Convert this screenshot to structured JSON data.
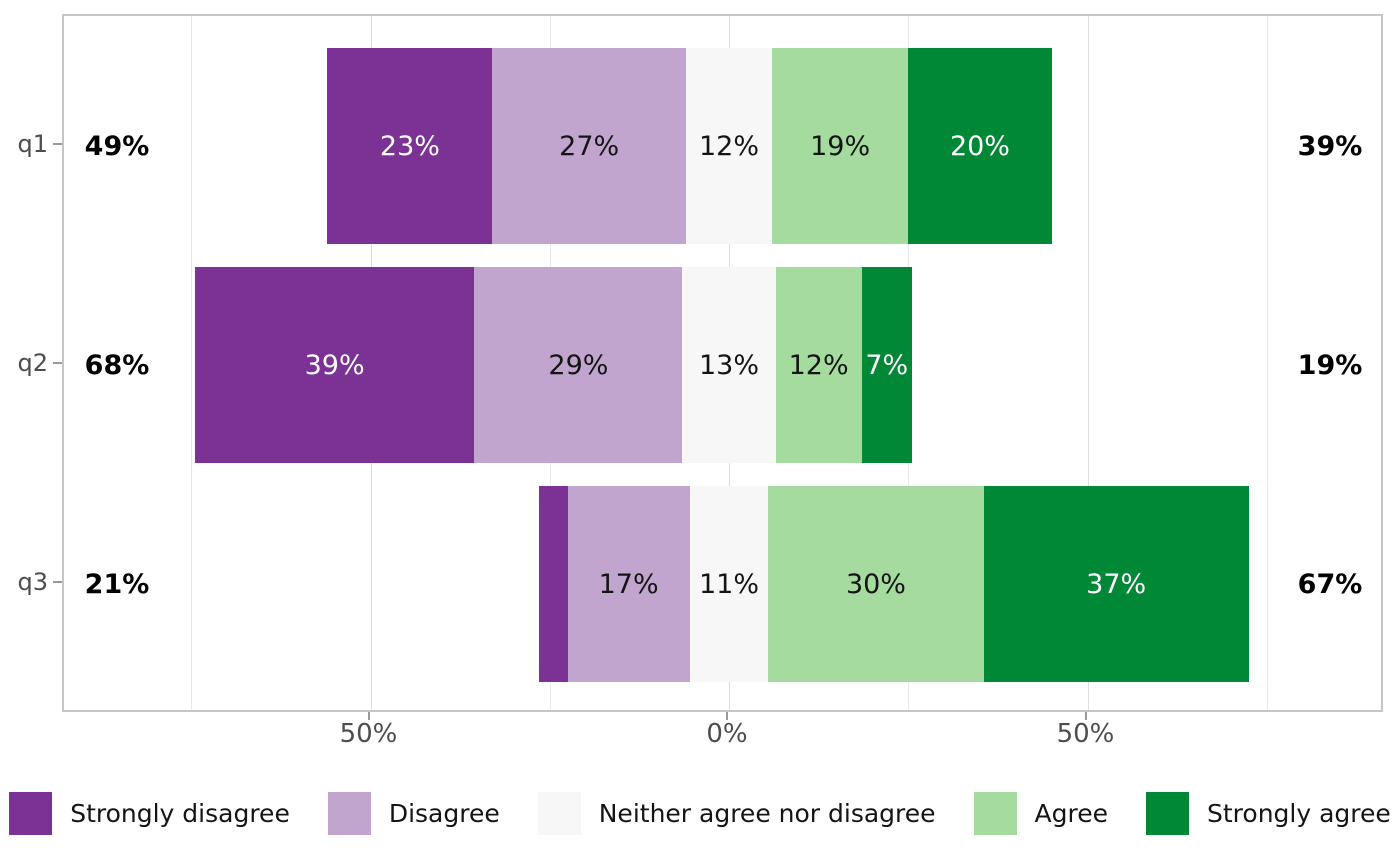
{
  "chart_data": {
    "type": "bar",
    "variant": "diverging-stacked-likert",
    "orientation": "horizontal",
    "title": "",
    "xlabel": "",
    "ylabel": "",
    "categories": [
      "q1",
      "q2",
      "q3"
    ],
    "levels": [
      "Strongly disagree",
      "Disagree",
      "Neither agree nor disagree",
      "Agree",
      "Strongly agree"
    ],
    "level_colors": [
      "#7b3294",
      "#c2a5cf",
      "#f7f7f7",
      "#a6dba0",
      "#008837"
    ],
    "level_label_colors": [
      "#ffffff",
      "#141414",
      "#141414",
      "#141414",
      "#ffffff"
    ],
    "rows": [
      {
        "category": "q1",
        "values": [
          23,
          27,
          12,
          19,
          20
        ],
        "segment_labels": [
          "23%",
          "27%",
          "12%",
          "19%",
          "20%"
        ],
        "low_total": "49%",
        "high_total": "39%"
      },
      {
        "category": "q2",
        "values": [
          39,
          29,
          13,
          12,
          7
        ],
        "segment_labels": [
          "39%",
          "29%",
          "13%",
          "12%",
          "7%"
        ],
        "low_total": "68%",
        "high_total": "19%"
      },
      {
        "category": "q3",
        "values": [
          4,
          17,
          11,
          30,
          37
        ],
        "segment_labels": [
          "",
          "17%",
          "11%",
          "30%",
          "37%"
        ],
        "low_total": "21%",
        "high_total": "67%"
      }
    ],
    "hide_segment_labels_below": 5,
    "x_axis": {
      "tick_labels": [
        "50%",
        "0%",
        "50%"
      ],
      "tick_percents": [
        -50,
        0,
        50
      ],
      "minor_grid_percents": [
        -75,
        -25,
        25,
        75
      ],
      "centered_on": "Neither agree nor disagree midpoint",
      "grid": true
    },
    "legend_position": "bottom"
  },
  "legend": {
    "items": [
      {
        "label": "Strongly disagree",
        "color": "#7b3294"
      },
      {
        "label": "Disagree",
        "color": "#c2a5cf"
      },
      {
        "label": "Neither agree nor disagree",
        "color": "#f7f7f7"
      },
      {
        "label": "Agree",
        "color": "#a6dba0"
      },
      {
        "label": "Strongly agree",
        "color": "#008837"
      }
    ]
  }
}
